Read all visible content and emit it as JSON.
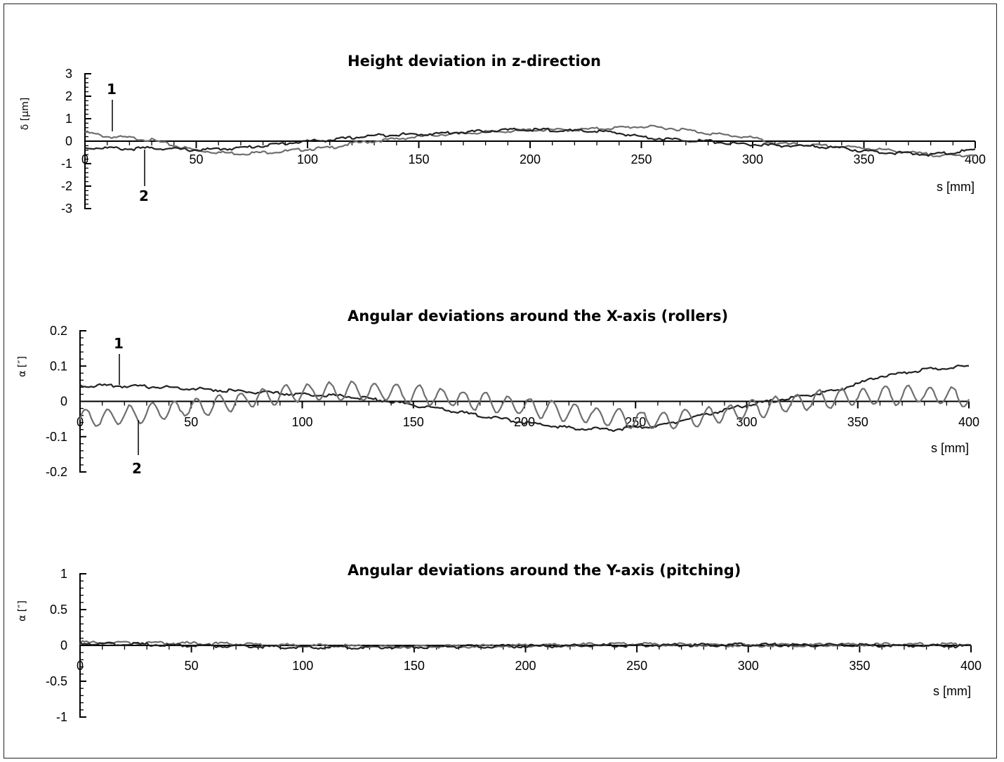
{
  "chart_data": [
    {
      "type": "line",
      "title": "Height deviation in z-direction",
      "ylabel": "δ [µm]",
      "xlabel": "s [mm]",
      "xlim": [
        0,
        400
      ],
      "ylim": [
        -3,
        3
      ],
      "x_ticks": [
        "0",
        "50",
        "100",
        "150",
        "200",
        "250",
        "300",
        "350",
        "400"
      ],
      "y_ticks": [
        "3",
        "2",
        "1",
        "0",
        "-1",
        "-2",
        "-3"
      ],
      "series": [
        {
          "name": "1",
          "color": "#6e6e6e",
          "x": [
            0,
            10,
            20,
            30,
            40,
            50,
            60,
            70,
            80,
            90,
            100,
            110,
            120,
            130,
            140,
            150,
            160,
            170,
            180,
            190,
            200,
            210,
            220,
            230,
            240,
            250,
            260,
            270,
            280,
            290,
            300,
            310,
            320,
            330,
            340,
            350,
            360,
            370,
            380,
            390,
            400
          ],
          "y": [
            0.4,
            0.2,
            0.15,
            0.05,
            -0.2,
            -0.4,
            -0.5,
            -0.55,
            -0.5,
            -0.45,
            -0.35,
            -0.3,
            -0.1,
            0.0,
            0.1,
            0.2,
            0.3,
            0.35,
            0.4,
            0.45,
            0.5,
            0.5,
            0.5,
            0.55,
            0.6,
            0.65,
            0.6,
            0.5,
            0.35,
            0.25,
            0.15,
            -0.1,
            -0.15,
            -0.2,
            -0.25,
            -0.3,
            -0.4,
            -0.5,
            -0.6,
            -0.65,
            -0.6
          ]
        },
        {
          "name": "2",
          "color": "#222222",
          "x": [
            0,
            10,
            20,
            30,
            40,
            50,
            60,
            70,
            80,
            90,
            100,
            110,
            120,
            130,
            140,
            150,
            160,
            170,
            180,
            190,
            200,
            210,
            220,
            230,
            240,
            250,
            260,
            270,
            280,
            290,
            300,
            310,
            320,
            330,
            340,
            350,
            360,
            370,
            380,
            390,
            400
          ],
          "y": [
            -0.3,
            -0.3,
            -0.35,
            -0.3,
            -0.35,
            -0.4,
            -0.35,
            -0.3,
            -0.2,
            -0.1,
            0.0,
            0.05,
            0.15,
            0.25,
            0.3,
            0.3,
            0.35,
            0.4,
            0.45,
            0.5,
            0.5,
            0.5,
            0.45,
            0.45,
            0.35,
            0.2,
            0.1,
            0.05,
            0.0,
            -0.1,
            -0.15,
            -0.2,
            -0.2,
            -0.25,
            -0.3,
            -0.45,
            -0.5,
            -0.55,
            -0.6,
            -0.5,
            -0.4
          ]
        }
      ],
      "annotations": [
        "1",
        "2"
      ]
    },
    {
      "type": "line",
      "title": "Angular deviations around the X-axis (rollers)",
      "ylabel": "α [″]",
      "xlabel": "s [mm]",
      "xlim": [
        0,
        400
      ],
      "ylim": [
        -0.2,
        0.2
      ],
      "x_ticks": [
        "0",
        "50",
        "100",
        "150",
        "200",
        "250",
        "300",
        "350",
        "400"
      ],
      "y_ticks": [
        "0.2",
        "0.1",
        "0",
        "-0.1",
        "-0.2"
      ],
      "series": [
        {
          "name": "1",
          "color": "#222222",
          "x": [
            0,
            20,
            40,
            60,
            80,
            100,
            120,
            140,
            160,
            180,
            200,
            220,
            240,
            260,
            280,
            300,
            320,
            340,
            360,
            380,
            400
          ],
          "y": [
            0.045,
            0.043,
            0.04,
            0.033,
            0.025,
            0.02,
            0.015,
            0.0,
            -0.02,
            -0.04,
            -0.06,
            -0.075,
            -0.08,
            -0.07,
            -0.04,
            -0.01,
            0.01,
            0.03,
            0.07,
            0.09,
            0.1
          ]
        },
        {
          "name": "2",
          "color": "#6e6e6e",
          "wave_period": 10,
          "x": [
            0,
            20,
            40,
            60,
            80,
            100,
            120,
            140,
            160,
            180,
            200,
            220,
            240,
            260,
            280,
            300,
            320,
            340,
            360,
            380,
            400
          ],
          "y": [
            -0.05,
            -0.04,
            -0.025,
            -0.01,
            0.01,
            0.025,
            0.03,
            0.025,
            0.015,
            0.0,
            -0.015,
            -0.03,
            -0.045,
            -0.055,
            -0.045,
            -0.025,
            -0.005,
            0.01,
            0.015,
            0.02,
            0.01
          ]
        }
      ],
      "annotations": [
        "1",
        "2"
      ]
    },
    {
      "type": "line",
      "title": "Angular deviations around the Y-axis (pitching)",
      "ylabel": "α [″]",
      "xlabel": "s [mm]",
      "xlim": [
        0,
        400
      ],
      "ylim": [
        -1,
        1
      ],
      "x_ticks": [
        "0",
        "50",
        "100",
        "150",
        "200",
        "250",
        "300",
        "350",
        "400"
      ],
      "y_ticks": [
        "1",
        "0.5",
        "0",
        "-0.5",
        "-1"
      ],
      "series": [
        {
          "color": "#6e6e6e",
          "x": [
            0,
            50,
            100,
            150,
            200,
            250,
            300,
            350,
            400
          ],
          "y": [
            0.04,
            0.03,
            0.0,
            -0.02,
            0.0,
            0.02,
            0.0,
            0.01,
            0.02
          ]
        },
        {
          "color": "#222222",
          "x": [
            0,
            50,
            100,
            150,
            200,
            250,
            300,
            350,
            400
          ],
          "y": [
            0.03,
            0.0,
            -0.03,
            -0.02,
            -0.01,
            0.0,
            0.01,
            0.0,
            -0.01
          ]
        }
      ]
    }
  ]
}
